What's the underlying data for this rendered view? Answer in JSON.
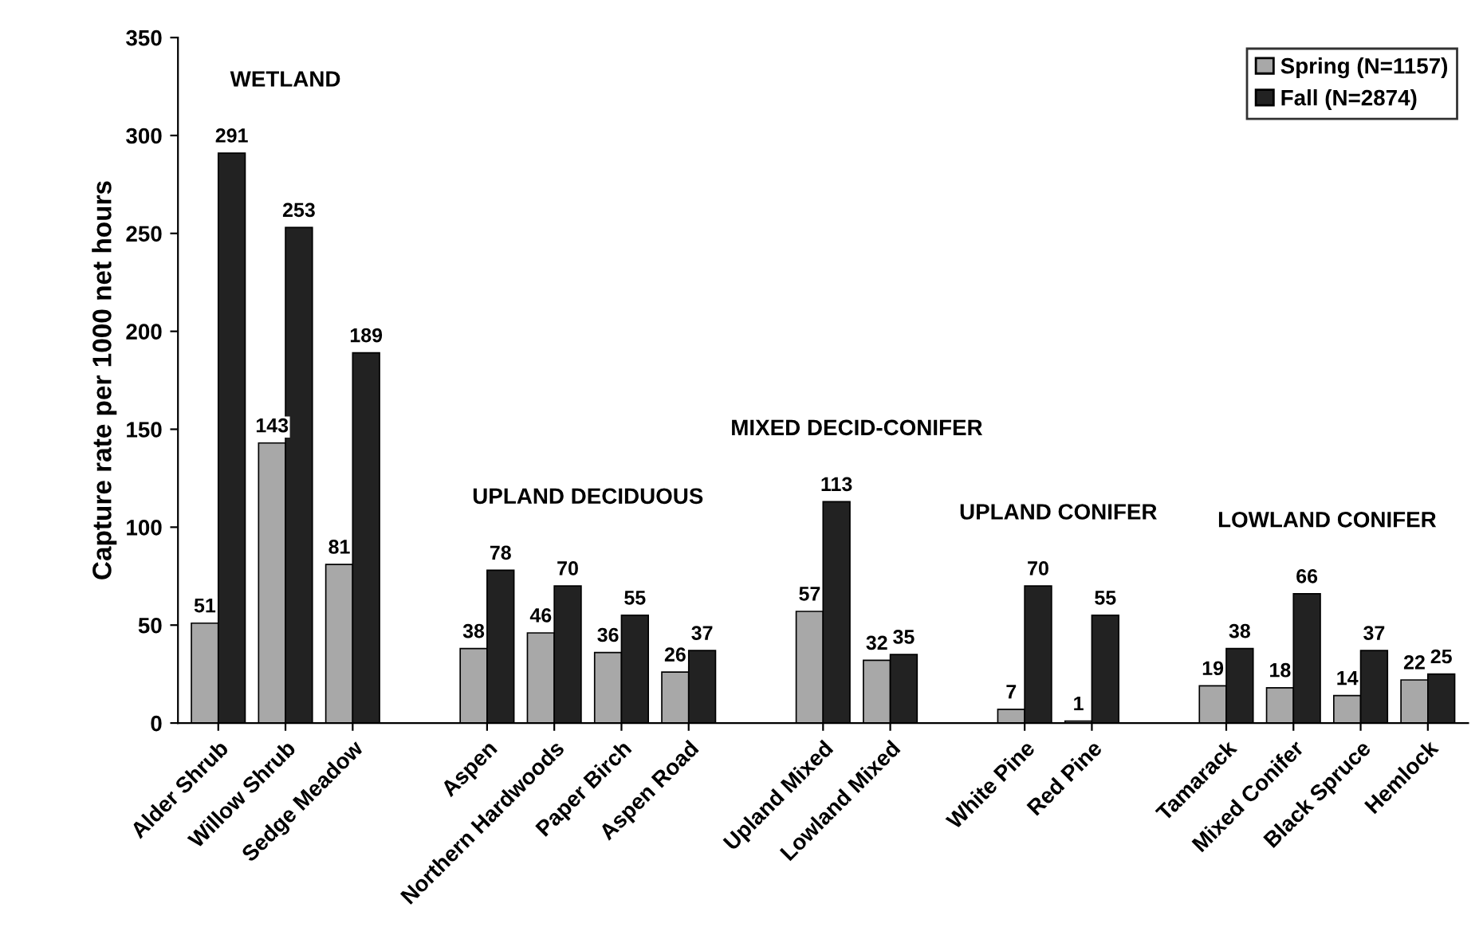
{
  "chart_data": {
    "type": "bar",
    "ylabel": "Capture rate per 1000 net hours",
    "categories": [
      "Alder Shrub",
      "Willow Shrub",
      "Sedge Meadow",
      null,
      "Aspen",
      "Northern Hardwoods",
      "Paper Birch",
      "Aspen Road",
      null,
      "Upland Mixed",
      "Lowland Mixed",
      null,
      "White Pine",
      "Red Pine",
      null,
      "Tamarack",
      "Mixed Conifer",
      "Black Spruce",
      "Hemlock"
    ],
    "series": [
      {
        "name": "Spring (N=1157)",
        "color": "#a8a8a8",
        "values": [
          51,
          143,
          81,
          null,
          38,
          46,
          36,
          26,
          null,
          57,
          32,
          null,
          7,
          1,
          null,
          19,
          18,
          14,
          22
        ]
      },
      {
        "name": "Fall (N=2874)",
        "color": "#222222",
        "values": [
          291,
          253,
          189,
          null,
          78,
          70,
          55,
          37,
          null,
          113,
          35,
          null,
          70,
          55,
          null,
          38,
          66,
          37,
          25
        ]
      }
    ],
    "ylim": [
      0,
      350
    ],
    "yticks": [
      0,
      50,
      100,
      150,
      200,
      250,
      300,
      350
    ],
    "grid": false,
    "legend": "top right",
    "data_labels": true,
    "annotations": [
      "WETLAND",
      "UPLAND DECIDUOUS",
      "MIXED DECID-CONIFER",
      "UPLAND CONIFER",
      "LOWLAND CONIFER"
    ]
  }
}
